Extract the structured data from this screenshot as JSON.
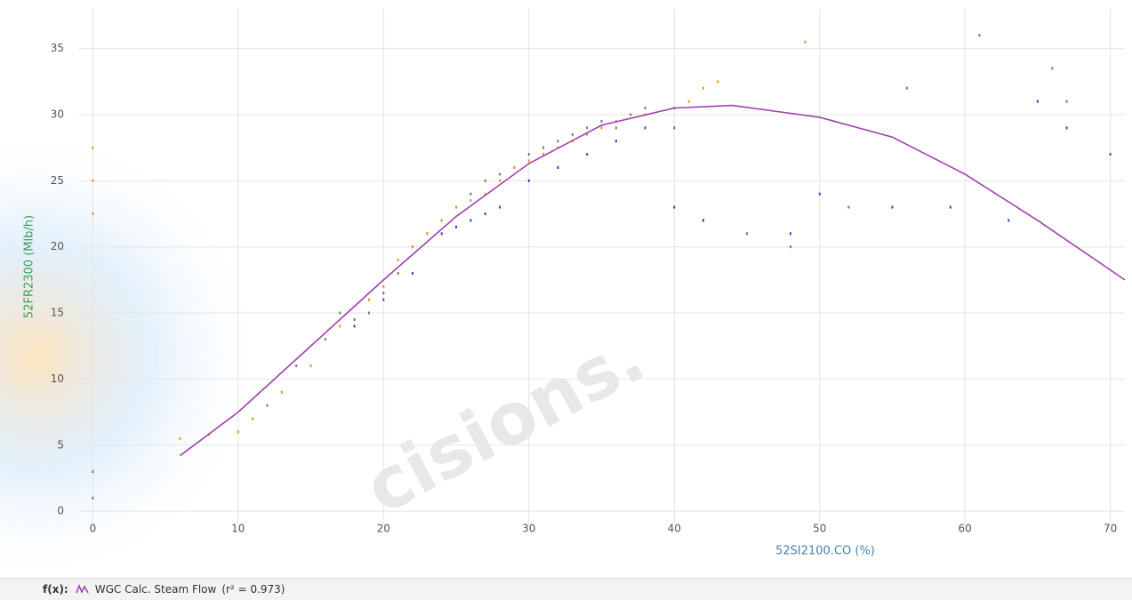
{
  "chart_data": {
    "type": "scatter",
    "x_label": "52SI2100.CO (%)",
    "y_label": "52FR2300 (Mlb/h)",
    "xlim": [
      -1,
      71
    ],
    "ylim": [
      -1,
      38
    ],
    "xticks": [
      0,
      10,
      20,
      30,
      40,
      50,
      60,
      70
    ],
    "yticks": [
      0,
      5,
      10,
      15,
      20,
      25,
      30,
      35
    ],
    "grid": true,
    "series": [
      {
        "color": "#777777",
        "x": [
          0,
          0,
          12,
          14,
          16,
          17,
          18,
          19,
          20,
          21,
          22,
          23,
          24,
          25,
          26,
          27,
          28,
          29,
          30,
          31,
          32,
          33,
          34,
          35,
          36,
          37,
          38,
          40,
          42,
          45,
          48,
          52,
          56,
          61,
          66,
          67
        ],
        "values": [
          1,
          3,
          8,
          11,
          13,
          15,
          14.5,
          15,
          16.5,
          18,
          20,
          21,
          22,
          23,
          24,
          25,
          25.5,
          26,
          27,
          27.5,
          28,
          28.5,
          29,
          29.5,
          29,
          30,
          30.5,
          29,
          22,
          21,
          20,
          23,
          32,
          36,
          33.5,
          31
        ]
      },
      {
        "color": "#f0901e",
        "x": [
          0,
          0,
          0,
          6,
          8,
          10,
          11,
          13,
          15,
          17,
          19,
          20,
          21,
          22,
          23,
          24,
          25,
          26,
          27,
          28,
          29,
          30,
          31,
          32,
          33,
          34,
          35,
          36,
          38,
          40,
          41,
          42,
          43,
          49
        ],
        "values": [
          22.5,
          25,
          27.5,
          5.5,
          5.8,
          6,
          7,
          9,
          11,
          14,
          16,
          17,
          19,
          20,
          21,
          22,
          23,
          23.5,
          24,
          25,
          26,
          26.5,
          27,
          27.5,
          28,
          28.5,
          29,
          29.5,
          30,
          30.5,
          31,
          32,
          32.5,
          35.5
        ]
      },
      {
        "color": "#3b3bd6",
        "x": [
          18,
          20,
          22,
          24,
          25,
          26,
          27,
          28,
          30,
          32,
          34,
          36,
          38,
          40,
          42,
          48,
          50,
          55,
          59,
          63,
          65,
          67,
          70
        ],
        "values": [
          14,
          16,
          18,
          21,
          21.5,
          22,
          22.5,
          23,
          25,
          26,
          27,
          28,
          29,
          23,
          22,
          21,
          24,
          23,
          23,
          22,
          31,
          29,
          27
        ]
      },
      {
        "name": "WGC Calc. Steam Flow",
        "color": "#a040b0",
        "mode": "line",
        "x": [
          6,
          10,
          15,
          20,
          25,
          30,
          35,
          40,
          44,
          50,
          55,
          60,
          65,
          71
        ],
        "values": [
          4.2,
          7.5,
          12.5,
          17.5,
          22.3,
          26.3,
          29.2,
          30.5,
          30.7,
          29.8,
          28.3,
          25.5,
          22,
          17.5
        ]
      }
    ],
    "fit_prefix": "f(x):",
    "fit_stat": "(r² = 0.973)",
    "watermark": "cisions."
  }
}
